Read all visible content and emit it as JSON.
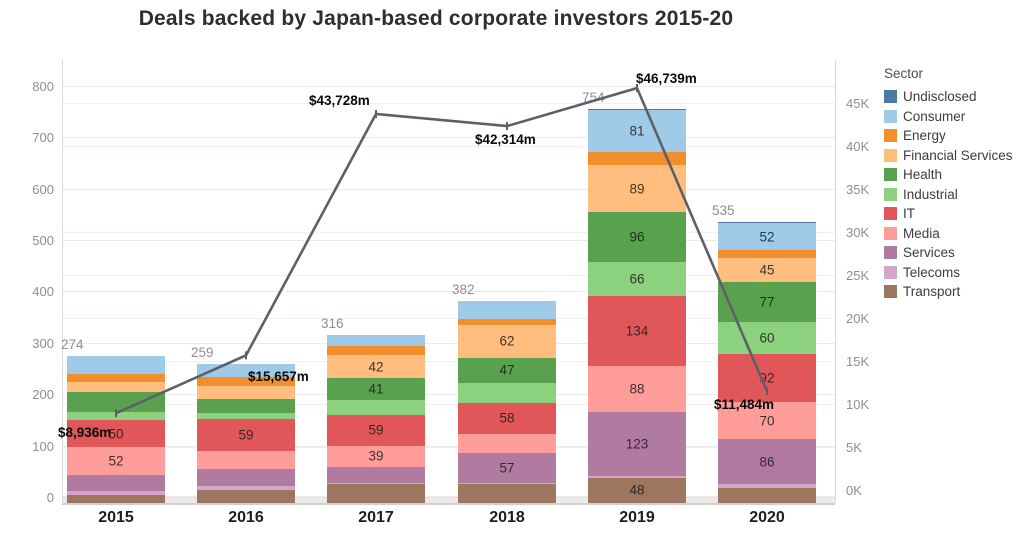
{
  "title": "Deals backed by Japan-based corporate investors 2015-20",
  "legend_title": "Sector",
  "chart_data": {
    "type": "bar",
    "subtype": "stacked bars with overlaid line on secondary axis",
    "title": "Deals backed by Japan-based corporate investors 2015-20",
    "categories": [
      "2015",
      "2016",
      "2017",
      "2018",
      "2019",
      "2020"
    ],
    "bar_totals": [
      274,
      259,
      316,
      382,
      754,
      535
    ],
    "series": [
      {
        "name": "Undisclosed",
        "color": "#4e79a7",
        "values": [
          0,
          0,
          0,
          0,
          1,
          2
        ]
      },
      {
        "name": "Consumer",
        "color": "#a0cbe8",
        "values": [
          34,
          25,
          22,
          35,
          81,
          52
        ]
      },
      {
        "name": "Energy",
        "color": "#f28e2b",
        "values": [
          15,
          16,
          17,
          11,
          25,
          15
        ]
      },
      {
        "name": "Financial Services",
        "color": "#ffbe7d",
        "values": [
          18,
          24,
          42,
          62,
          89,
          45
        ]
      },
      {
        "name": "Health",
        "color": "#59a14f",
        "values": [
          37,
          27,
          41,
          47,
          96,
          77
        ]
      },
      {
        "name": "Industrial",
        "color": "#8cd17d",
        "values": [
          16,
          11,
          28,
          38,
          66,
          60
        ]
      },
      {
        "name": "IT",
        "color": "#e15759",
        "values": [
          50,
          59,
          59,
          58,
          134,
          92
        ]
      },
      {
        "name": "Media",
        "color": "#ff9d9a",
        "values": [
          52,
          33,
          39,
          36,
          88,
          70
        ]
      },
      {
        "name": "Services",
        "color": "#b07aa1",
        "values": [
          29,
          32,
          30,
          57,
          123,
          86
        ]
      },
      {
        "name": "Telecoms",
        "color": "#d4a6c8",
        "values": [
          8,
          7,
          3,
          2,
          3,
          8
        ]
      },
      {
        "name": "Transport",
        "color": "#9d7660",
        "values": [
          15,
          25,
          35,
          36,
          48,
          28
        ]
      }
    ],
    "line": {
      "values_millions": [
        8936,
        15657,
        43728,
        42314,
        46739,
        11484
      ],
      "labels": [
        "$8,936m",
        "$15,657m",
        "$43,728m",
        "$42,314m",
        "$46,739m",
        "$11,484m"
      ],
      "color": "#5d6167"
    },
    "left_axis": {
      "ticks": [
        0,
        100,
        200,
        300,
        400,
        500,
        600,
        700,
        800
      ]
    },
    "right_axis": {
      "ticks": [
        "0K",
        "5K",
        "10K",
        "15K",
        "20K",
        "25K",
        "30K",
        "35K",
        "40K",
        "45K"
      ]
    },
    "legend_title": "Sector",
    "legend_position": "top-right",
    "grid": true,
    "segment_label_min_value": 39
  }
}
